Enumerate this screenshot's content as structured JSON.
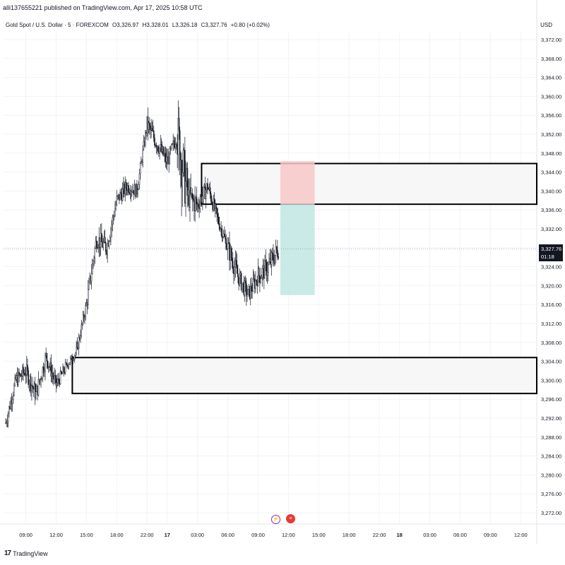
{
  "header": {
    "published": "alli137655221 published on TradingView.com, Apr 17, 2025 10:58 UTC",
    "symbol": "Gold Spot / U.S. Dollar · 5 · FOREXCOM",
    "open": "O3,326.97",
    "high": "H3,328.01",
    "low": "L3,326.18",
    "close": "C3,327.76",
    "change": "+0.80 (+0.02%)",
    "currency": "USD"
  },
  "price_tag": {
    "price": "3,327.76",
    "countdown": "01:18"
  },
  "footer": {
    "brand": "TradingView",
    "logo_text": "17"
  },
  "events": [
    {
      "icon": "lightning-icon",
      "symbol": "⚡"
    },
    {
      "icon": "us-flag-icon",
      "symbol": "≡"
    }
  ],
  "colors": {
    "candle": "#131722",
    "box_border": "#000000",
    "box_fill": "#f7f7f7",
    "stop_zone": "#f8c8c8",
    "target_zone": "#bfe6e2",
    "grid": "#f0f3fa"
  },
  "chart_data": {
    "type": "candlestick",
    "y_axis": {
      "ticks": [
        "3,372.00",
        "3,368.00",
        "3,364.00",
        "3,360.00",
        "3,356.00",
        "3,352.00",
        "3,348.00",
        "3,344.00",
        "3,340.00",
        "3,336.00",
        "3,332.00",
        "3,328.00",
        "3,324.00",
        "3,320.00",
        "3,316.00",
        "3,312.00",
        "3,308.00",
        "3,304.00",
        "3,300.00",
        "3,296.00",
        "3,292.00",
        "3,288.00",
        "3,284.00",
        "3,280.00",
        "3,276.00",
        "3,272.00"
      ],
      "tick_values": [
        3372,
        3368,
        3364,
        3360,
        3356,
        3352,
        3348,
        3344,
        3340,
        3336,
        3332,
        3328,
        3324,
        3320,
        3316,
        3312,
        3308,
        3304,
        3300,
        3296,
        3292,
        3288,
        3284,
        3280,
        3276,
        3272
      ],
      "range": [
        3270,
        3376
      ]
    },
    "x_axis": {
      "ticks": [
        "09:00",
        "12:00",
        "15:00",
        "18:00",
        "22:00",
        "17",
        "03:00",
        "06:00",
        "09:00",
        "12:00",
        "15:00",
        "18:00",
        "22:00",
        "18",
        "03:00",
        "06:00",
        "09:00",
        "12:00"
      ],
      "bold": [
        false,
        false,
        false,
        false,
        false,
        true,
        false,
        false,
        false,
        false,
        false,
        false,
        false,
        true,
        false,
        false,
        false,
        false
      ],
      "hours_from_start": [
        2,
        5,
        8,
        11,
        14,
        16,
        19,
        22,
        25,
        28,
        31,
        34,
        37,
        39,
        42,
        45,
        48,
        51
      ]
    },
    "price_path": {
      "hours": [
        0,
        1,
        2,
        3,
        4,
        5,
        6,
        7,
        8,
        9,
        10,
        11,
        12,
        13,
        14,
        15,
        16,
        17,
        18,
        19,
        20,
        21,
        22,
        23,
        24,
        25,
        26,
        27
      ],
      "close": [
        3291,
        3300,
        3302,
        3297,
        3305,
        3299,
        3303,
        3306,
        3316,
        3330,
        3328,
        3338,
        3341,
        3340,
        3354,
        3350,
        3346,
        3352,
        3339,
        3337,
        3341,
        3334,
        3328,
        3322,
        3318,
        3322,
        3324,
        3327.76
      ],
      "high": [
        3296,
        3304,
        3306,
        3303,
        3309,
        3303,
        3305,
        3310,
        3320,
        3333,
        3333,
        3342,
        3344,
        3344,
        3358,
        3355,
        3352,
        3356,
        3344,
        3344,
        3345,
        3338,
        3334,
        3326,
        3324,
        3329,
        3332,
        3330
      ],
      "low": [
        3288,
        3295,
        3296,
        3293,
        3300,
        3296,
        3300,
        3303,
        3310,
        3322,
        3324,
        3333,
        3336,
        3337,
        3347,
        3345,
        3343,
        3324,
        3329,
        3334,
        3336,
        3330,
        3322,
        3316,
        3314,
        3317,
        3320,
        3325
      ]
    },
    "zones": [
      {
        "kind": "supply-box",
        "top": 3345.8,
        "bottom": 3337.2,
        "start_hour": 19.4
      },
      {
        "kind": "demand-box",
        "top": 3304.8,
        "bottom": 3297.2,
        "start_hour": 6.6
      }
    ],
    "position": {
      "entry": 3337.2,
      "stop": 3346.3,
      "target": 3318.0,
      "start_hour": 27.2,
      "end_hour": 30.6
    },
    "last_price": 3327.76
  }
}
